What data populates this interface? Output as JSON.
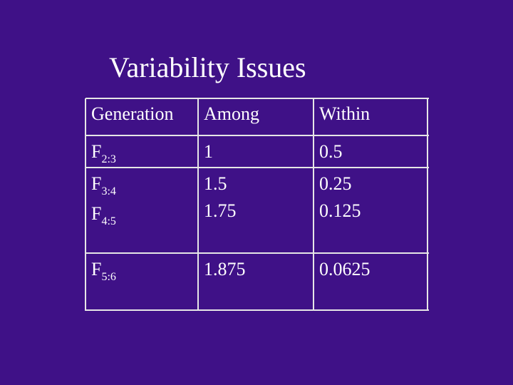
{
  "title": "Variability Issues",
  "table": {
    "header": [
      "Generation",
      "Among",
      "Within"
    ],
    "rows": [
      [
        [
          {
            "base": "F",
            "sub": "2:3"
          }
        ],
        [
          "1"
        ],
        [
          "0.5"
        ]
      ],
      [
        [
          {
            "base": "F",
            "sub": "3:4"
          },
          {
            "base": "F",
            "sub": "4:5"
          }
        ],
        [
          "1.5",
          "1.75"
        ],
        [
          "0.25",
          "0.125"
        ]
      ],
      [
        [
          {
            "base": "F",
            "sub": "5:6"
          }
        ],
        [
          "1.875"
        ],
        [
          "0.0625"
        ]
      ]
    ]
  }
}
